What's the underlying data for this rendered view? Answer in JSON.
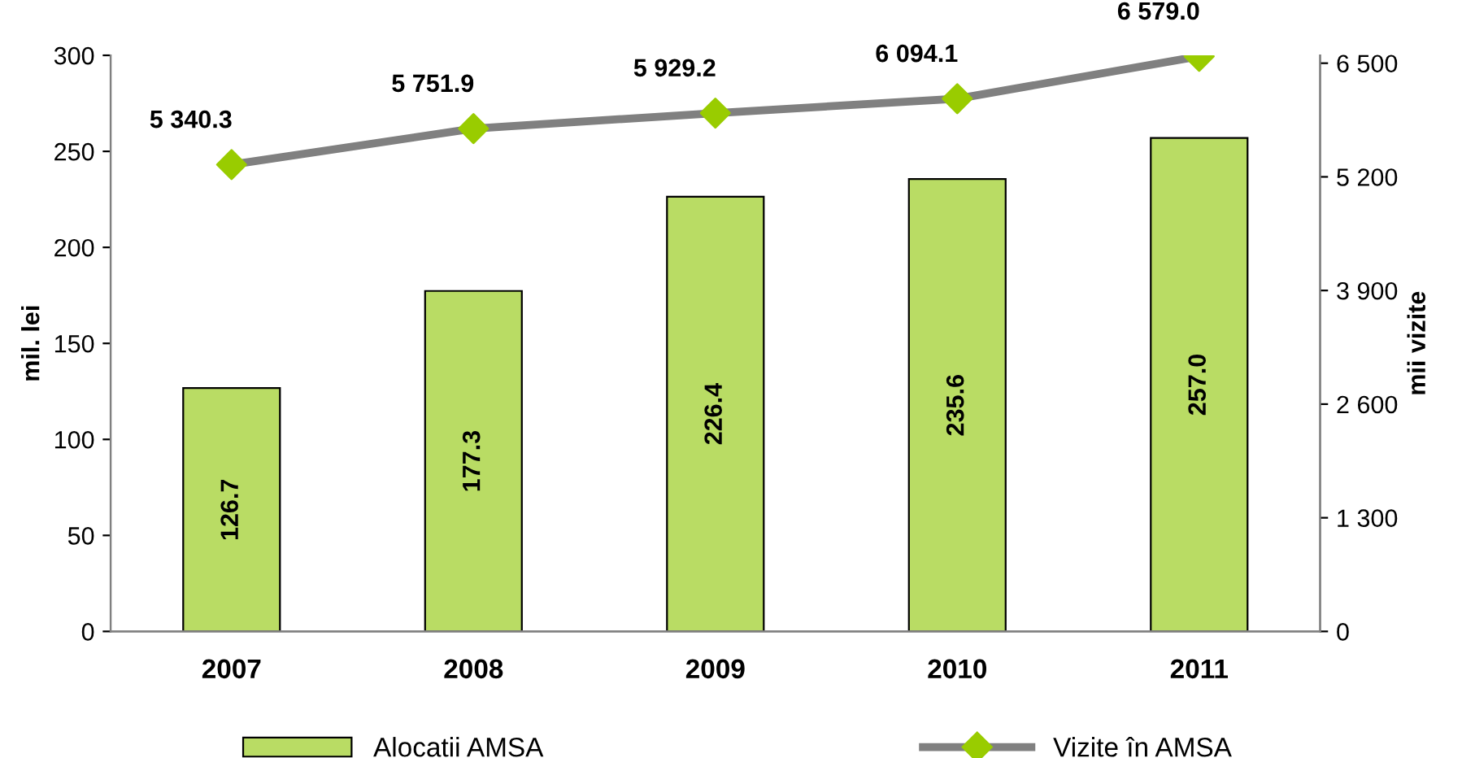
{
  "chart_data": {
    "type": "bar",
    "categories": [
      "2007",
      "2008",
      "2009",
      "2010",
      "2011"
    ],
    "ylabel": "mil. lei",
    "y2label": "mii vizite",
    "series": [
      {
        "name": "Alocatii AMSA",
        "color": "#b9dc64",
        "values": [
          126.7,
          177.3,
          226.4,
          235.6,
          257.0
        ],
        "value_labels": [
          "126.7",
          "177.3",
          "226.4",
          "235.6",
          "257.0"
        ]
      },
      {
        "name": "Vizite în AMSA",
        "type": "line",
        "axis": "y2",
        "color": "#808080",
        "colors": [
          "#99cc00",
          "#99cc00",
          "#99cc00",
          "#99cc00",
          "#99cc00"
        ],
        "marker": "diamond",
        "values": [
          5340.3,
          5751.9,
          5929.2,
          6094.1,
          6579.0
        ],
        "value_labels": [
          "5 340.3",
          "5 751.9",
          "5 929.2",
          "6 094.1",
          "6 579.0"
        ]
      }
    ],
    "ylim": [
      0,
      300
    ],
    "yticks": [
      0,
      50,
      100,
      150,
      200,
      250,
      300
    ],
    "y2lim": [
      0,
      6590
    ],
    "y2ticks": [
      0,
      {
        "value": 1300,
        "label": "1 300"
      },
      {
        "value": 2600,
        "label": "2 600"
      },
      {
        "value": 3900,
        "label": "3 900"
      },
      {
        "value": 5200,
        "label": "5 200"
      },
      {
        "value": 6500,
        "label": "6 500"
      }
    ],
    "grid": false,
    "legend": "bottom"
  }
}
